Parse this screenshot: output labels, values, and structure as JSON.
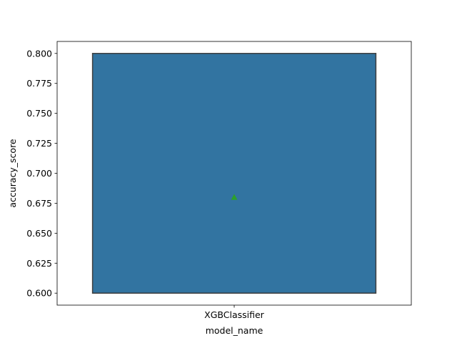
{
  "chart_data": {
    "type": "box",
    "title": "",
    "xlabel": "model_name",
    "ylabel": "accuracy_score",
    "categories": [
      "XGBClassifier"
    ],
    "boxes": [
      {
        "category": "XGBClassifier",
        "q1": 0.6,
        "median": 0.6,
        "q3": 0.8,
        "whisker_low": 0.6,
        "whisker_high": 0.8,
        "mean": 0.68
      }
    ],
    "ylim": [
      0.59,
      0.81
    ],
    "yticks": [
      0.6,
      0.625,
      0.65,
      0.675,
      0.7,
      0.725,
      0.75,
      0.775,
      0.8
    ],
    "ytick_labels": [
      "0.600",
      "0.625",
      "0.650",
      "0.675",
      "0.700",
      "0.725",
      "0.750",
      "0.775",
      "0.800"
    ],
    "grid": false,
    "legend": "none",
    "colors": {
      "box_fill": "#3274a1",
      "box_edge": "#3f3f3f",
      "mean_marker": "#2ca02c",
      "axes": "#000000"
    },
    "mean_marker_shape": "triangle"
  }
}
